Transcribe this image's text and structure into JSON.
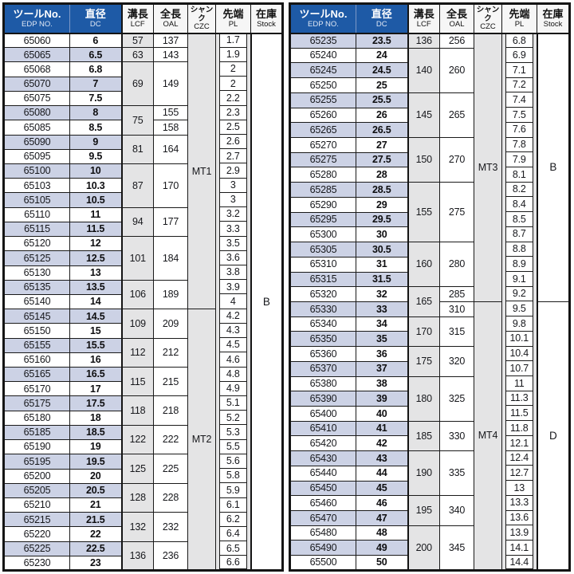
{
  "columns": [
    {
      "ja": "ツールNo.",
      "en": "EDP NO.",
      "key": "tool-no"
    },
    {
      "ja": "直径",
      "en": "DC",
      "key": "diameter"
    },
    {
      "ja": "溝長",
      "en": "LCF",
      "key": "flute-length"
    },
    {
      "ja": "全長",
      "en": "OAL",
      "key": "overall-length"
    },
    {
      "ja": "シャンク",
      "en": "CZC",
      "key": "shank"
    },
    {
      "ja": "先端",
      "en": "PL",
      "key": "point-length"
    },
    {
      "ja": "在庫",
      "en": "Stock",
      "key": "stock"
    }
  ],
  "colors": {
    "header_blue": "#1e5aa6",
    "header_divider_blue": "#7d97c6",
    "row_shade_lavender": "#ccd2e5",
    "cell_gray": "#e4e4e5",
    "border_black": "#141414"
  },
  "tables": [
    {
      "id": "left",
      "shade_first": false,
      "rows": [
        {
          "edp": "65060",
          "dc": "6",
          "pl": "1.7",
          "lcf": [
            "57",
            1
          ],
          "oal": [
            "137",
            1
          ],
          "czc": [
            "MT1",
            19
          ],
          "stock": [
            "B",
            37
          ]
        },
        {
          "edp": "65065",
          "dc": "6.5",
          "pl": "1.9",
          "lcf": [
            "63",
            1
          ],
          "oal": [
            "143",
            1
          ]
        },
        {
          "edp": "65068",
          "dc": "6.8",
          "pl": "2",
          "lcf": [
            "69",
            3
          ],
          "oal": [
            "149",
            3
          ]
        },
        {
          "edp": "65070",
          "dc": "7",
          "pl": "2"
        },
        {
          "edp": "65075",
          "dc": "7.5",
          "pl": "2.2"
        },
        {
          "edp": "65080",
          "dc": "8",
          "pl": "2.3",
          "lcf": [
            "75",
            2
          ],
          "oal": [
            "155",
            1
          ]
        },
        {
          "edp": "65085",
          "dc": "8.5",
          "pl": "2.5",
          "oal": [
            "158",
            1
          ]
        },
        {
          "edp": "65090",
          "dc": "9",
          "pl": "2.6",
          "lcf": [
            "81",
            2
          ],
          "oal": [
            "164",
            2
          ]
        },
        {
          "edp": "65095",
          "dc": "9.5",
          "pl": "2.7"
        },
        {
          "edp": "65100",
          "dc": "10",
          "pl": "2.9",
          "lcf": [
            "87",
            3
          ],
          "oal": [
            "170",
            3
          ]
        },
        {
          "edp": "65103",
          "dc": "10.3",
          "pl": "3"
        },
        {
          "edp": "65105",
          "dc": "10.5",
          "pl": "3"
        },
        {
          "edp": "65110",
          "dc": "11",
          "pl": "3.2",
          "lcf": [
            "94",
            2
          ],
          "oal": [
            "177",
            2
          ]
        },
        {
          "edp": "65115",
          "dc": "11.5",
          "pl": "3.3"
        },
        {
          "edp": "65120",
          "dc": "12",
          "pl": "3.5",
          "lcf": [
            "101",
            3
          ],
          "oal": [
            "184",
            3
          ]
        },
        {
          "edp": "65125",
          "dc": "12.5",
          "pl": "3.6"
        },
        {
          "edp": "65130",
          "dc": "13",
          "pl": "3.8"
        },
        {
          "edp": "65135",
          "dc": "13.5",
          "pl": "3.9",
          "lcf": [
            "106",
            2
          ],
          "oal": [
            "189",
            2
          ]
        },
        {
          "edp": "65140",
          "dc": "14",
          "pl": "4"
        },
        {
          "edp": "65145",
          "dc": "14.5",
          "pl": "4.2",
          "lcf": [
            "109",
            2
          ],
          "oal": [
            "209",
            2
          ],
          "czc": [
            "MT2",
            18
          ]
        },
        {
          "edp": "65150",
          "dc": "15",
          "pl": "4.3"
        },
        {
          "edp": "65155",
          "dc": "15.5",
          "pl": "4.5",
          "lcf": [
            "112",
            2
          ],
          "oal": [
            "212",
            2
          ]
        },
        {
          "edp": "65160",
          "dc": "16",
          "pl": "4.6"
        },
        {
          "edp": "65165",
          "dc": "16.5",
          "pl": "4.8",
          "lcf": [
            "115",
            2
          ],
          "oal": [
            "215",
            2
          ]
        },
        {
          "edp": "65170",
          "dc": "17",
          "pl": "4.9"
        },
        {
          "edp": "65175",
          "dc": "17.5",
          "pl": "5.1",
          "lcf": [
            "118",
            2
          ],
          "oal": [
            "218",
            2
          ]
        },
        {
          "edp": "65180",
          "dc": "18",
          "pl": "5.2"
        },
        {
          "edp": "65185",
          "dc": "18.5",
          "pl": "5.3",
          "lcf": [
            "122",
            2
          ],
          "oal": [
            "222",
            2
          ]
        },
        {
          "edp": "65190",
          "dc": "19",
          "pl": "5.5"
        },
        {
          "edp": "65195",
          "dc": "19.5",
          "pl": "5.6",
          "lcf": [
            "125",
            2
          ],
          "oal": [
            "225",
            2
          ]
        },
        {
          "edp": "65200",
          "dc": "20",
          "pl": "5.8"
        },
        {
          "edp": "65205",
          "dc": "20.5",
          "pl": "5.9",
          "lcf": [
            "128",
            2
          ],
          "oal": [
            "228",
            2
          ]
        },
        {
          "edp": "65210",
          "dc": "21",
          "pl": "6.1"
        },
        {
          "edp": "65215",
          "dc": "21.5",
          "pl": "6.2",
          "lcf": [
            "132",
            2
          ],
          "oal": [
            "232",
            2
          ]
        },
        {
          "edp": "65220",
          "dc": "22",
          "pl": "6.4"
        },
        {
          "edp": "65225",
          "dc": "22.5",
          "pl": "6.5",
          "lcf": [
            "136",
            2
          ],
          "oal": [
            "236",
            2
          ]
        },
        {
          "edp": "65230",
          "dc": "23",
          "pl": "6.6"
        }
      ]
    },
    {
      "id": "right",
      "shade_first": true,
      "rows": [
        {
          "edp": "65235",
          "dc": "23.5",
          "pl": "6.8",
          "lcf": [
            "136",
            1
          ],
          "oal": [
            "256",
            1
          ],
          "czc": [
            "MT3",
            18
          ],
          "stock": [
            "B",
            18
          ]
        },
        {
          "edp": "65240",
          "dc": "24",
          "pl": "6.9",
          "lcf": [
            "140",
            3
          ],
          "oal": [
            "260",
            3
          ]
        },
        {
          "edp": "65245",
          "dc": "24.5",
          "pl": "7.1"
        },
        {
          "edp": "65250",
          "dc": "25",
          "pl": "7.2"
        },
        {
          "edp": "65255",
          "dc": "25.5",
          "pl": "7.4",
          "lcf": [
            "145",
            3
          ],
          "oal": [
            "265",
            3
          ]
        },
        {
          "edp": "65260",
          "dc": "26",
          "pl": "7.5"
        },
        {
          "edp": "65265",
          "dc": "26.5",
          "pl": "7.6"
        },
        {
          "edp": "65270",
          "dc": "27",
          "pl": "7.8",
          "lcf": [
            "150",
            3
          ],
          "oal": [
            "270",
            3
          ]
        },
        {
          "edp": "65275",
          "dc": "27.5",
          "pl": "7.9"
        },
        {
          "edp": "65280",
          "dc": "28",
          "pl": "8.1"
        },
        {
          "edp": "65285",
          "dc": "28.5",
          "pl": "8.2",
          "lcf": [
            "155",
            4
          ],
          "oal": [
            "275",
            4
          ]
        },
        {
          "edp": "65290",
          "dc": "29",
          "pl": "8.4"
        },
        {
          "edp": "65295",
          "dc": "29.5",
          "pl": "8.5"
        },
        {
          "edp": "65300",
          "dc": "30",
          "pl": "8.7"
        },
        {
          "edp": "65305",
          "dc": "30.5",
          "pl": "8.8",
          "lcf": [
            "160",
            3
          ],
          "oal": [
            "280",
            3
          ]
        },
        {
          "edp": "65310",
          "dc": "31",
          "pl": "8.9"
        },
        {
          "edp": "65315",
          "dc": "31.5",
          "pl": "9.1"
        },
        {
          "edp": "65320",
          "dc": "32",
          "pl": "9.2",
          "lcf": [
            "165",
            2
          ],
          "oal": [
            "285",
            1
          ]
        },
        {
          "edp": "65330",
          "dc": "33",
          "pl": "9.5",
          "oal": [
            "310",
            1
          ],
          "czc": [
            "MT4",
            18
          ],
          "stock": [
            "D",
            18
          ]
        },
        {
          "edp": "65340",
          "dc": "34",
          "pl": "9.8",
          "lcf": [
            "170",
            2
          ],
          "oal": [
            "315",
            2
          ]
        },
        {
          "edp": "65350",
          "dc": "35",
          "pl": "10.1"
        },
        {
          "edp": "65360",
          "dc": "36",
          "pl": "10.4",
          "lcf": [
            "175",
            2
          ],
          "oal": [
            "320",
            2
          ]
        },
        {
          "edp": "65370",
          "dc": "37",
          "pl": "10.7"
        },
        {
          "edp": "65380",
          "dc": "38",
          "pl": "11",
          "lcf": [
            "180",
            3
          ],
          "oal": [
            "325",
            3
          ]
        },
        {
          "edp": "65390",
          "dc": "39",
          "pl": "11.3"
        },
        {
          "edp": "65400",
          "dc": "40",
          "pl": "11.5"
        },
        {
          "edp": "65410",
          "dc": "41",
          "pl": "11.8",
          "lcf": [
            "185",
            2
          ],
          "oal": [
            "330",
            2
          ]
        },
        {
          "edp": "65420",
          "dc": "42",
          "pl": "12.1"
        },
        {
          "edp": "65430",
          "dc": "43",
          "pl": "12.4",
          "lcf": [
            "190",
            3
          ],
          "oal": [
            "335",
            3
          ]
        },
        {
          "edp": "65440",
          "dc": "44",
          "pl": "12.7"
        },
        {
          "edp": "65450",
          "dc": "45",
          "pl": "13"
        },
        {
          "edp": "65460",
          "dc": "46",
          "pl": "13.3",
          "lcf": [
            "195",
            2
          ],
          "oal": [
            "340",
            2
          ]
        },
        {
          "edp": "65470",
          "dc": "47",
          "pl": "13.6"
        },
        {
          "edp": "65480",
          "dc": "48",
          "pl": "13.9",
          "lcf": [
            "200",
            3
          ],
          "oal": [
            "345",
            3
          ]
        },
        {
          "edp": "65490",
          "dc": "49",
          "pl": "14.1"
        },
        {
          "edp": "65500",
          "dc": "50",
          "pl": "14.4"
        }
      ]
    }
  ]
}
